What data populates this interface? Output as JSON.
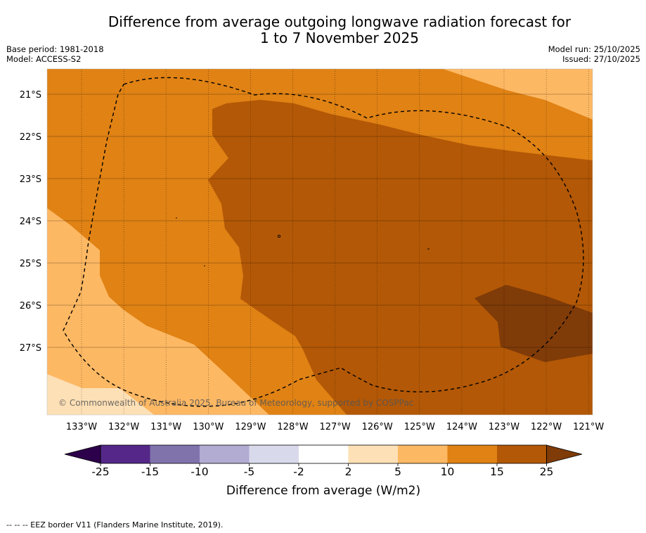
{
  "title_line1": "Difference from average outgoing longwave radiation forecast for",
  "title_line2": "1 to 7 November 2025",
  "meta_left": {
    "base_period": "Base period: 1981-2018",
    "model": "Model: ACCESS-S2"
  },
  "meta_right": {
    "model_run": "Model run: 25/10/2025",
    "issued": "Issued: 27/10/2025"
  },
  "map": {
    "longitudes": [
      "133°W",
      "132°W",
      "131°W",
      "130°W",
      "129°W",
      "128°W",
      "127°W",
      "126°W",
      "125°W",
      "124°W",
      "123°W",
      "122°W",
      "121°W"
    ],
    "latitudes": [
      "21°S",
      "22°S",
      "23°S",
      "24°S",
      "25°S",
      "26°S",
      "27°S"
    ],
    "copyright": "© Commonwealth of Australia 2025, Bureau of Meteorology, supported by COSPPac"
  },
  "colorbar": {
    "ticks": [
      "-25",
      "-15",
      "-10",
      "-5",
      "-2",
      "2",
      "5",
      "10",
      "15",
      "25"
    ],
    "colors": [
      "#542788",
      "#8073ac",
      "#b2abd2",
      "#d8daeb",
      "#ffffff",
      "#fee0b6",
      "#fdb863",
      "#e08214",
      "#b35806"
    ],
    "under_color": "#2d004b",
    "over_color": "#7f3b08",
    "label": "Difference from average (W/m2)"
  },
  "footer": "--  --  -- EEZ border V11 (Flanders Marine Institute, 2019)."
}
